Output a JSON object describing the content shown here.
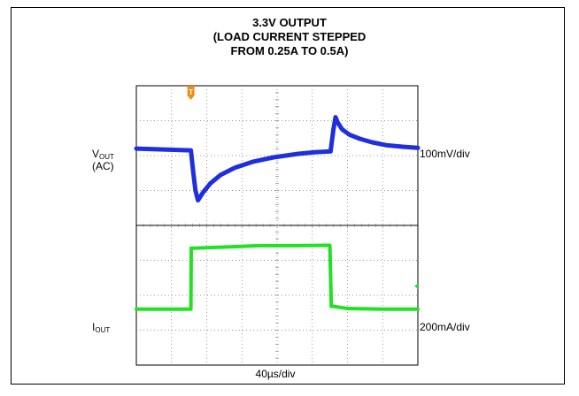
{
  "chart_data": {
    "type": "line",
    "title_lines": [
      "3.3V OUTPUT",
      "(LOAD CURRENT STEPPED",
      "FROM 0.25A TO 0.5A)"
    ],
    "xlabel": "40µs/div",
    "x_unit": "div",
    "xlim": [
      0,
      8
    ],
    "y_unit": "div",
    "ylim": [
      0,
      8
    ],
    "grid": true,
    "trigger_marker": "T",
    "channels": [
      {
        "label": "V",
        "label_sub": "OUT",
        "label_line2": "(AC)",
        "scale": "100mV/div",
        "color": "#1f2fe0"
      },
      {
        "label": "I",
        "label_sub": "OUT",
        "scale": "200mA/div",
        "color": "#22e022"
      }
    ],
    "series": [
      {
        "x": [
          0,
          1.55,
          1.62,
          1.68,
          1.75,
          1.9,
          2.1,
          2.4,
          2.8,
          3.3,
          3.9,
          4.6,
          5.1,
          5.52,
          5.6,
          5.66,
          5.72,
          5.85,
          6.05,
          6.35,
          6.7,
          7.1,
          7.6,
          8
        ],
        "y": [
          6.2,
          6.15,
          5.5,
          5.0,
          4.72,
          4.95,
          5.2,
          5.45,
          5.65,
          5.82,
          5.95,
          6.05,
          6.1,
          6.12,
          6.75,
          7.1,
          6.95,
          6.75,
          6.6,
          6.48,
          6.38,
          6.3,
          6.25,
          6.22
        ]
      },
      {
        "x": [
          0,
          1.55,
          1.56,
          1.65,
          2.5,
          3.5,
          4.5,
          5.5,
          5.54,
          5.6,
          6.0,
          7.0,
          8
        ],
        "y": [
          1.6,
          1.6,
          3.35,
          3.35,
          3.38,
          3.42,
          3.42,
          3.43,
          1.68,
          1.68,
          1.62,
          1.6,
          1.6
        ]
      }
    ]
  }
}
